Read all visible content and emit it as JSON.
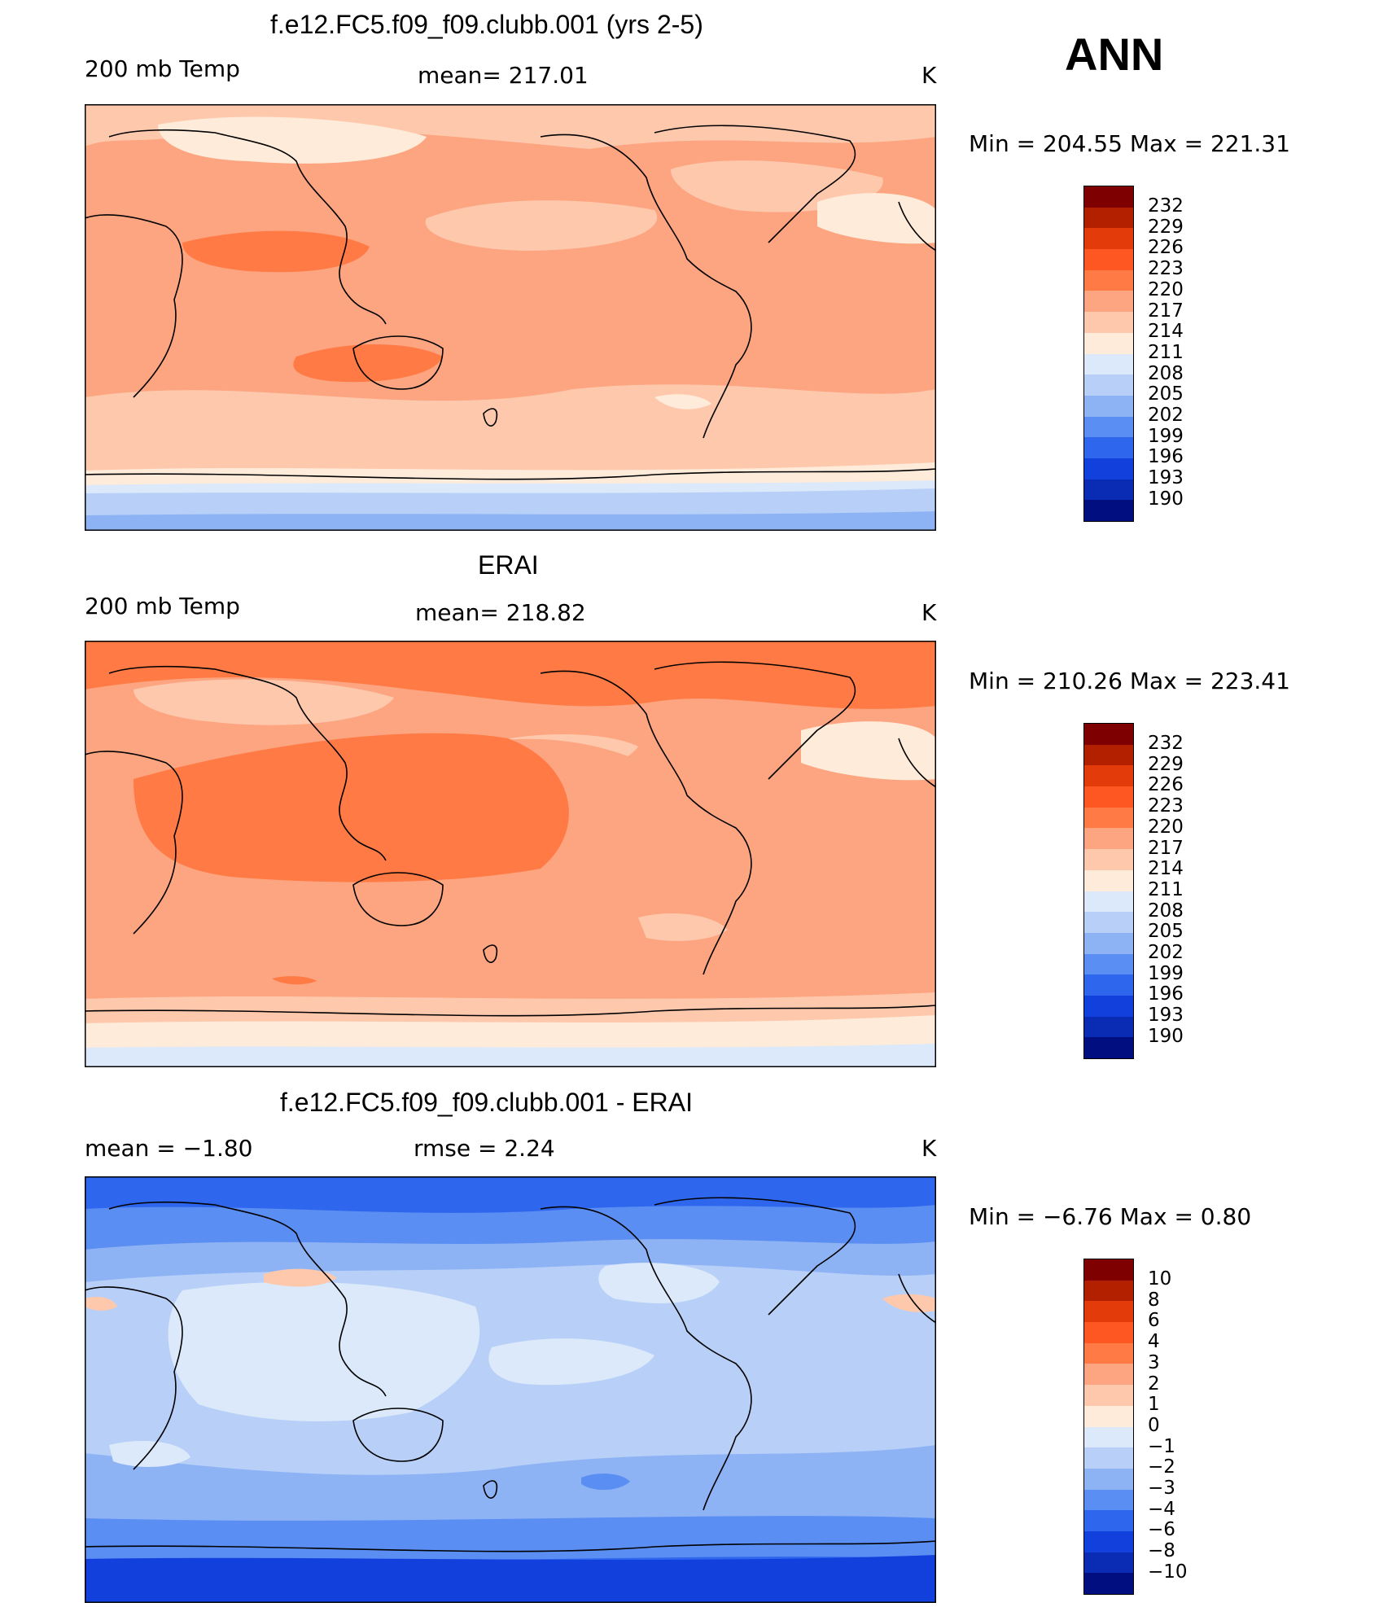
{
  "season": "ANN",
  "panels": [
    {
      "title": "f.e12.FC5.f09_f09.clubb.001 (yrs 2-5)",
      "left_label": "200 mb Temp",
      "center_label": "mean=  217.01",
      "units": "K",
      "minmax": "Min  =  204.55  Max  =  221.31",
      "colorbar_ticks": [
        "232",
        "229",
        "226",
        "223",
        "220",
        "217",
        "214",
        "211",
        "208",
        "205",
        "202",
        "199",
        "196",
        "193",
        "190"
      ]
    },
    {
      "title": "ERAI",
      "left_label": "200 mb Temp",
      "center_label": "mean=  218.82",
      "units": "K",
      "minmax": "Min  =  210.26  Max  =  223.41",
      "colorbar_ticks": [
        "232",
        "229",
        "226",
        "223",
        "220",
        "217",
        "214",
        "211",
        "208",
        "205",
        "202",
        "199",
        "196",
        "193",
        "190"
      ]
    },
    {
      "title": "f.e12.FC5.f09_f09.clubb.001 - ERAI",
      "left_label": "mean  =     −1.80",
      "center_label": "rmse  =      2.24",
      "units": "K",
      "minmax": "Min  =     −6.76  Max  =      0.80",
      "colorbar_ticks": [
        "10",
        "8",
        "6",
        "4",
        "3",
        "2",
        "1",
        "0",
        "−1",
        "−2",
        "−3",
        "−4",
        "−6",
        "−8",
        "−10"
      ]
    }
  ],
  "colors": {
    "abs_scale": [
      "#7f0000",
      "#b22000",
      "#e33b0a",
      "#ff5722",
      "#ff7a45",
      "#fca580",
      "#fec8ad",
      "#feebd9",
      "#dbe9fa",
      "#b8d0f7",
      "#8eb3f5",
      "#5a8ef2",
      "#2f66ee",
      "#1240dd",
      "#0a2cb5",
      "#000e80"
    ],
    "diff_scale": [
      "#7f0000",
      "#b22000",
      "#e33b0a",
      "#ff5722",
      "#ff7a45",
      "#fca580",
      "#fec8ad",
      "#feebd9",
      "#dbe9fa",
      "#b8d0f7",
      "#8eb3f5",
      "#5a8ef2",
      "#2f66ee",
      "#1240dd",
      "#0a2cb5",
      "#000e80"
    ]
  }
}
